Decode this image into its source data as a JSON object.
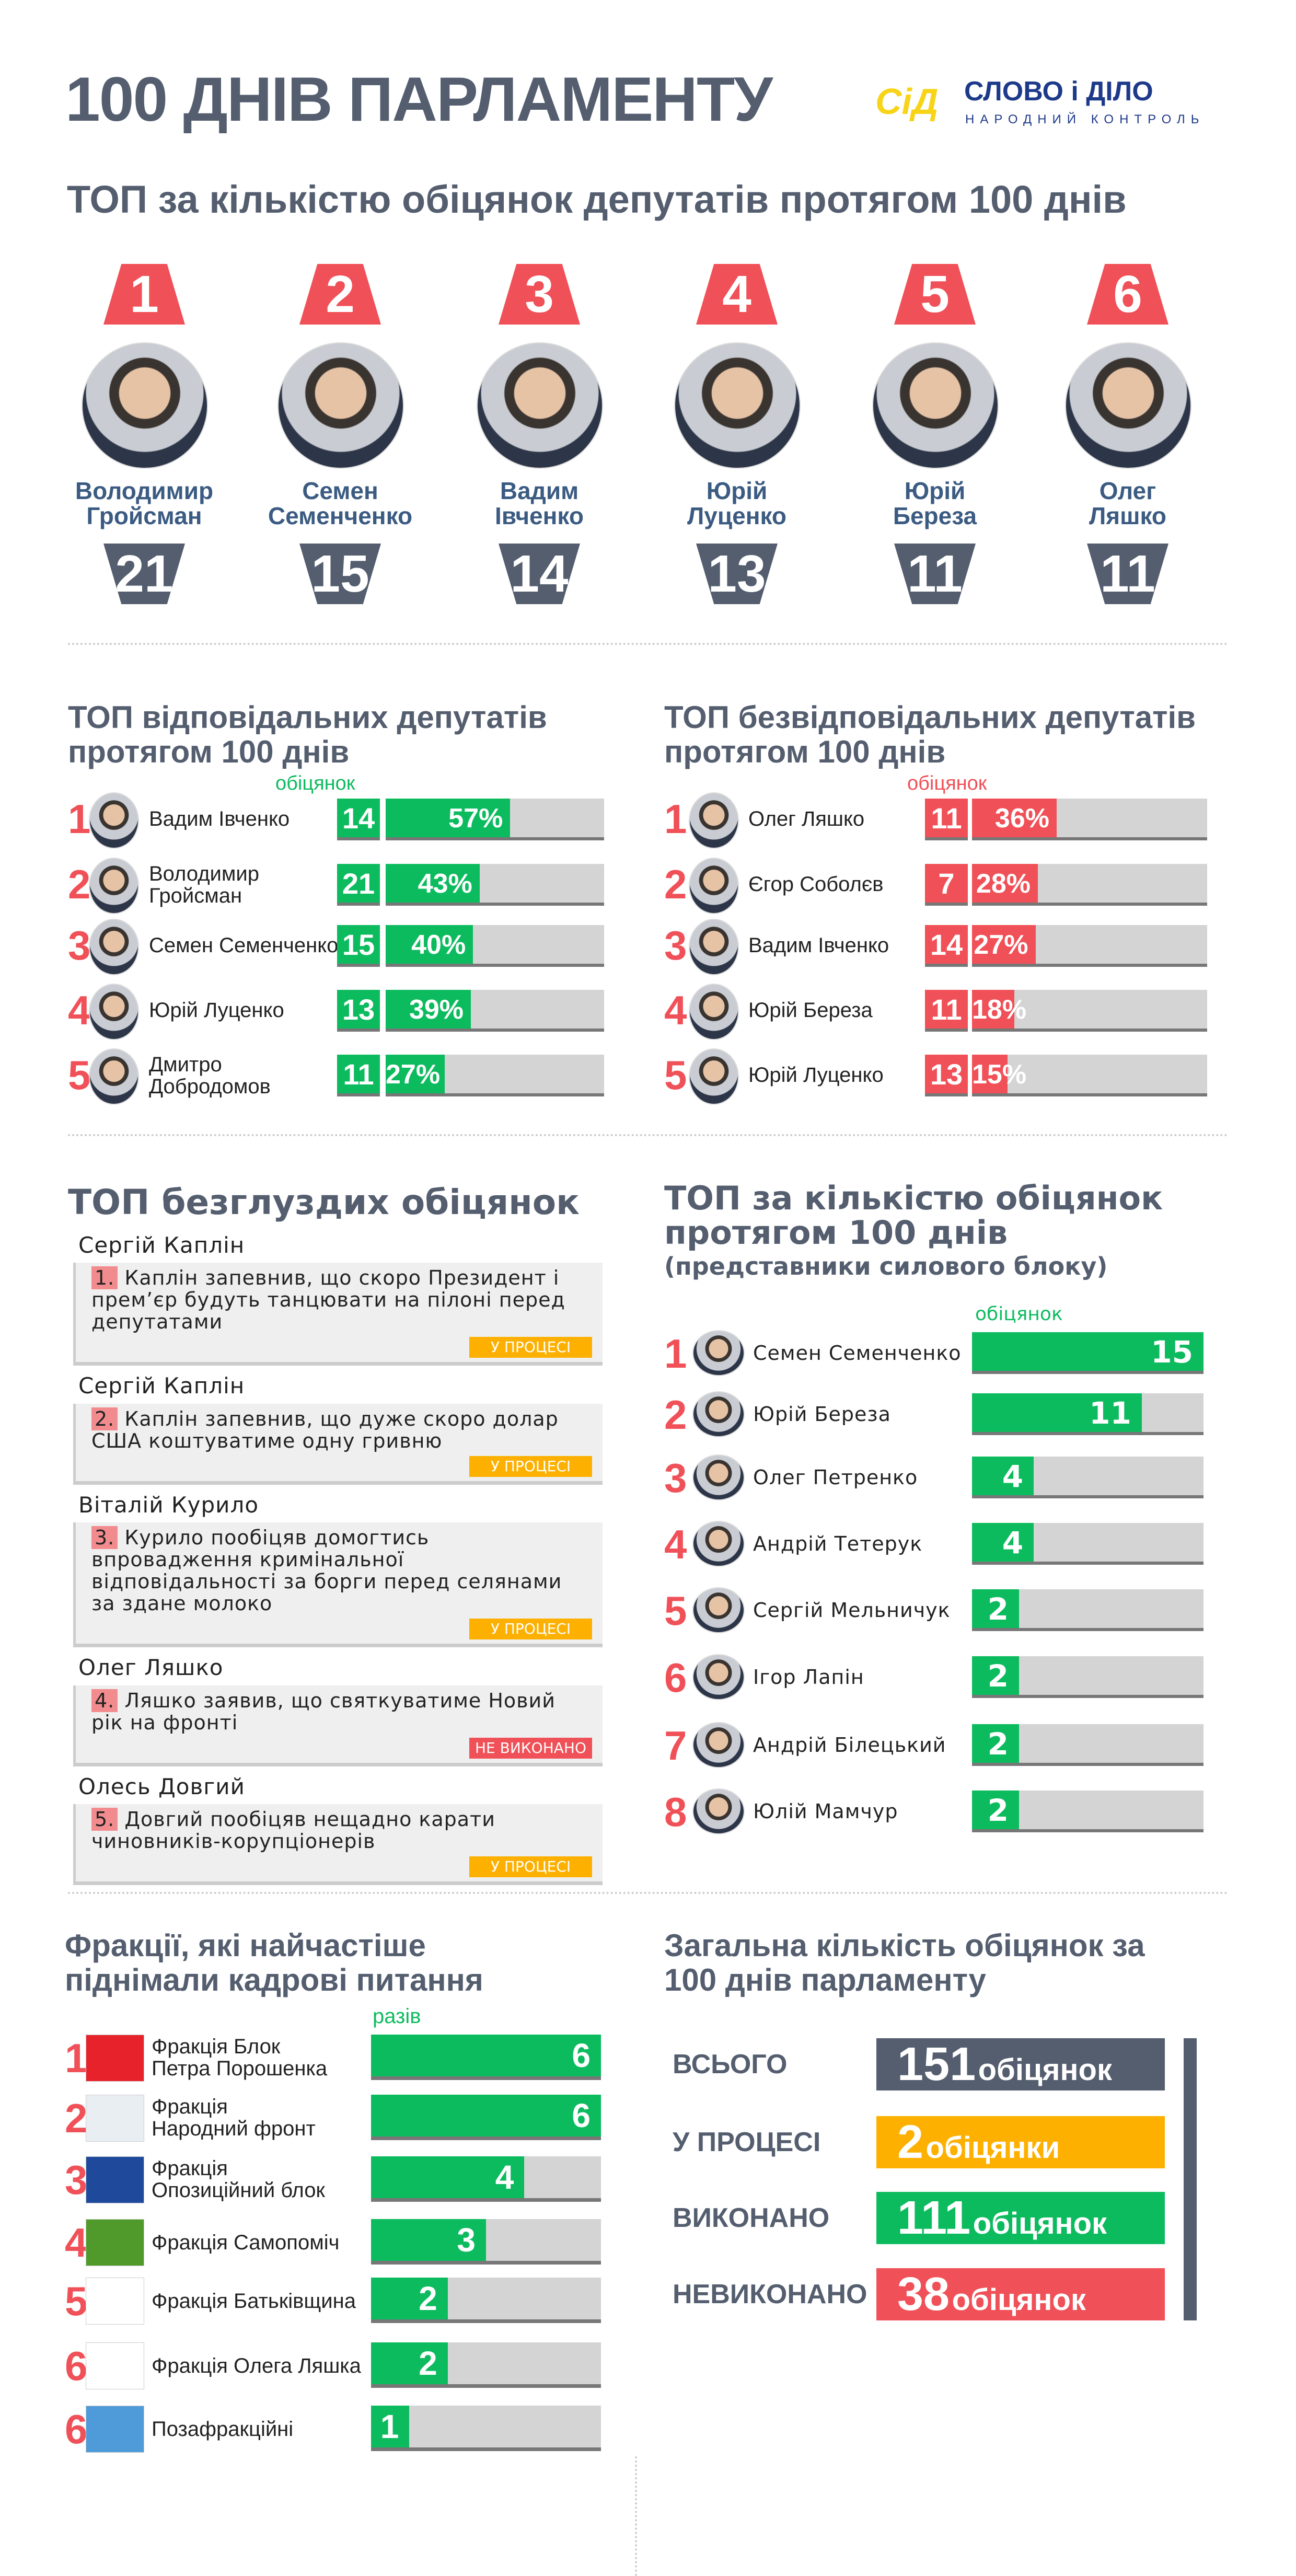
{
  "header": {
    "title": "100 ДНІВ ПАРЛАМЕНТУ",
    "logo": {
      "mark": "СіД",
      "name": "СЛОВО і ДІЛО",
      "tagline": "НАРОДНИЙ КОНТРОЛЬ",
      "colors": {
        "mark": "#f7d417",
        "name": "#1d3a8a"
      }
    },
    "subtitle": "ТОП за кількістю обіцянок депутатів протягом 100 днів"
  },
  "colors": {
    "slate": "#545e6f",
    "red": "#f05057",
    "green": "#0dbb5f",
    "grey": "#d4d4d4",
    "orange": "#fdb000",
    "name_blue": "#3b5b82"
  },
  "top_promises": [
    {
      "rank": "1",
      "first": "Володимир",
      "last": "Гройсман",
      "count": "21"
    },
    {
      "rank": "2",
      "first": "Семен",
      "last": "Семенченко",
      "count": "15"
    },
    {
      "rank": "3",
      "first": "Вадим",
      "last": "Івченко",
      "count": "14"
    },
    {
      "rank": "4",
      "first": "Юрій",
      "last": "Луценко",
      "count": "13"
    },
    {
      "rank": "5",
      "first": "Юрій",
      "last": "Береза",
      "count": "11"
    },
    {
      "rank": "6",
      "first": "Олег",
      "last": "Ляшко",
      "count": "11"
    }
  ],
  "responsible": {
    "title_1": "ТОП відповідальних депутатів",
    "title_2": "протягом 100 днів",
    "unit": "обіцянок",
    "rows": [
      {
        "rank": "1",
        "name_1": "Вадим Івченко",
        "name_2": "",
        "count": "14",
        "percent": 57,
        "label": "57%"
      },
      {
        "rank": "2",
        "name_1": "Володимир",
        "name_2": "Гройсман",
        "count": "21",
        "percent": 43,
        "label": "43%"
      },
      {
        "rank": "3",
        "name_1": "Семен Семенченко",
        "name_2": "",
        "count": "15",
        "percent": 40,
        "label": "40%"
      },
      {
        "rank": "4",
        "name_1": "Юрій Луценко",
        "name_2": "",
        "count": "13",
        "percent": 39,
        "label": "39%"
      },
      {
        "rank": "5",
        "name_1": "Дмитро",
        "name_2": "Добродомов",
        "count": "11",
        "percent": 27,
        "label": "27%"
      }
    ]
  },
  "irresponsible": {
    "title_1": "ТОП безвідповідальних депутатів",
    "title_2": "протягом 100 днів",
    "unit": "обіцянок",
    "rows": [
      {
        "rank": "1",
        "name_1": "Олег Ляшко",
        "name_2": "",
        "count": "11",
        "percent": 36,
        "label": "36%"
      },
      {
        "rank": "2",
        "name_1": "Єгор Соболєв",
        "name_2": "",
        "count": "7",
        "percent": 28,
        "label": "28%"
      },
      {
        "rank": "3",
        "name_1": "Вадим Івченко",
        "name_2": "",
        "count": "14",
        "percent": 27,
        "label": "27%"
      },
      {
        "rank": "4",
        "name_1": "Юрій Береза",
        "name_2": "",
        "count": "11",
        "percent": 18,
        "label": "18%"
      },
      {
        "rank": "5",
        "name_1": "Юрій Луценко",
        "name_2": "",
        "count": "13",
        "percent": 15,
        "label": "15%"
      }
    ]
  },
  "absurd": {
    "title": "ТОП безглуздих обіцянок",
    "items": [
      {
        "author": "Сергій Каплін",
        "num": "1.",
        "text": "Каплін запевнив, що скоро Президент і прем’єр будуть танцювати на пілоні перед депутатами",
        "status": "У ПРОЦЕСІ",
        "status_color": "#fdb000"
      },
      {
        "author": "Сергій Каплін",
        "num": "2.",
        "text": "Каплін запевнив, що дуже скоро долар США коштуватиме одну гривню",
        "status": "У ПРОЦЕСІ",
        "status_color": "#fdb000"
      },
      {
        "author": "Віталій Курило",
        "num": "3.",
        "text": "Курило пообіцяв домогтись впровадження кримінальної відповідальності за борги перед селянами за здане молоко",
        "status": "У ПРОЦЕСІ",
        "status_color": "#fdb000"
      },
      {
        "author": "Олег Ляшко",
        "num": "4.",
        "text": "Ляшко заявив, що святкуватиме Новий рік на фронті",
        "status": "НЕ ВИКОНАНО",
        "status_color": "#f05057"
      },
      {
        "author": "Олесь Довгий",
        "num": "5.",
        "text": "Довгий пообіцяв нещадно карати чиновників-корупціонерів",
        "status": "У ПРОЦЕСІ",
        "status_color": "#fdb000"
      }
    ]
  },
  "security": {
    "title_1": "ТОП за кількістю обіцянок",
    "title_2": "протягом 100 днів",
    "title_3": "(представники силового блоку)",
    "unit": "обіцянок",
    "max": 15,
    "rows": [
      {
        "rank": "1",
        "name": "Семен Семенченко",
        "value": 15
      },
      {
        "rank": "2",
        "name": "Юрій Береза",
        "value": 11
      },
      {
        "rank": "3",
        "name": "Олег Петренко",
        "value": 4
      },
      {
        "rank": "4",
        "name": "Андрій Тетерук",
        "value": 4
      },
      {
        "rank": "5",
        "name": "Сергій Мельничук",
        "value": 2
      },
      {
        "rank": "6",
        "name": "Ігор Лапін",
        "value": 2
      },
      {
        "rank": "7",
        "name": "Андрій Білецький",
        "value": 2
      },
      {
        "rank": "8",
        "name": "Юлій Мамчур",
        "value": 2
      }
    ]
  },
  "factions": {
    "title_1": "Фракції, які найчастіше",
    "title_2": "піднімали кадрові питання",
    "unit": "разів",
    "max": 6,
    "rows": [
      {
        "rank": "1",
        "name_1": "Фракція Блок",
        "name_2": "Петра Порошенка",
        "value": 6,
        "logo": "БЛОК ПЕТРА ПОРОШЕНКА",
        "logo_color": "#e8222a"
      },
      {
        "rank": "2",
        "name_1": "Фракція",
        "name_2": "Народний фронт",
        "value": 6,
        "logo": "Народний фронт",
        "logo_color": "#e9eef3"
      },
      {
        "rank": "3",
        "name_1": "Фракція",
        "name_2": "Опозиційний блок",
        "value": 4,
        "logo": "ОПОЗИЦІЙНИЙ БЛОК",
        "logo_color": "#1f4a9c"
      },
      {
        "rank": "4",
        "name_1": "Фракція Самопоміч",
        "name_2": "",
        "value": 3,
        "logo": "САМОПОМІЧ",
        "logo_color": "#4f9a2b"
      },
      {
        "rank": "5",
        "name_1": "Фракція Батьківщина",
        "name_2": "",
        "value": 2,
        "logo": "Батьківщина",
        "logo_color": "#ffffff"
      },
      {
        "rank": "6",
        "name_1": "Фракція Олега Ляшка",
        "name_2": "",
        "value": 2,
        "logo": "РПЛ",
        "logo_color": "#ffffff"
      },
      {
        "rank": "6",
        "name_1": "Позафракційні",
        "name_2": "",
        "value": 1,
        "logo": "Позафракційні",
        "logo_color": "#4f9bd9"
      }
    ]
  },
  "totals": {
    "title_1": "Загальна кількість обіцянок за",
    "title_2": "100 днів парламенту",
    "rows": [
      {
        "label": "ВСЬОГО",
        "num": "151",
        "unit": "обіцянок",
        "color": "#545e6f"
      },
      {
        "label": "У ПРОЦЕСІ",
        "num": "2",
        "unit": "обіцянки",
        "color": "#fdb000"
      },
      {
        "label": "ВИКОНАНО",
        "num": "111",
        "unit": "обіцянок",
        "color": "#0dbb5f"
      },
      {
        "label": "НЕВИКОНАНО",
        "num": "38",
        "unit": "обіцянок",
        "color": "#f05057"
      }
    ]
  }
}
